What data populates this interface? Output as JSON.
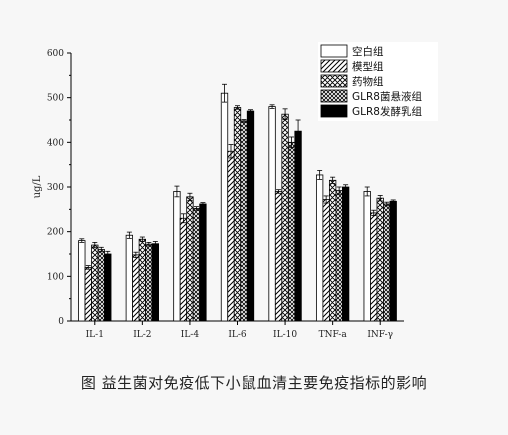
{
  "caption": "图 益生菌对免疫低下小鼠血清主要免疫指标的影响",
  "chart_data": {
    "type": "bar",
    "title": "",
    "xlabel": "",
    "ylabel": "ug/L",
    "ylim": [
      0,
      600
    ],
    "yticks": [
      0,
      100,
      200,
      300,
      400,
      500,
      600
    ],
    "legend_placement": "top-right",
    "grid": false,
    "categories": [
      "IL-1",
      "IL-2",
      "IL-4",
      "IL-6",
      "IL-10",
      "TNF-a",
      "INF-γ"
    ],
    "series": [
      {
        "name": "空白组",
        "pattern": "white",
        "values": [
          180,
          192,
          290,
          510,
          480,
          327,
          290
        ],
        "errors": [
          4,
          7,
          12,
          20,
          4,
          10,
          10
        ]
      },
      {
        "name": "模型组",
        "pattern": "diagonal",
        "values": [
          120,
          148,
          230,
          380,
          290,
          272,
          242
        ],
        "errors": [
          4,
          6,
          10,
          15,
          4,
          8,
          6
        ]
      },
      {
        "name": "药物组",
        "pattern": "diamond",
        "values": [
          170,
          183,
          278,
          478,
          463,
          315,
          275
        ],
        "errors": [
          6,
          5,
          8,
          4,
          12,
          7,
          6
        ]
      },
      {
        "name": "GLR8菌悬液组",
        "pattern": "cross",
        "values": [
          160,
          172,
          252,
          448,
          400,
          292,
          262
        ],
        "errors": [
          5,
          4,
          4,
          3,
          12,
          8,
          4
        ]
      },
      {
        "name": "GLR8发酵乳组",
        "pattern": "black",
        "values": [
          150,
          173,
          262,
          470,
          425,
          300,
          268
        ],
        "errors": [
          6,
          5,
          3,
          3,
          25,
          5,
          3
        ]
      }
    ]
  }
}
